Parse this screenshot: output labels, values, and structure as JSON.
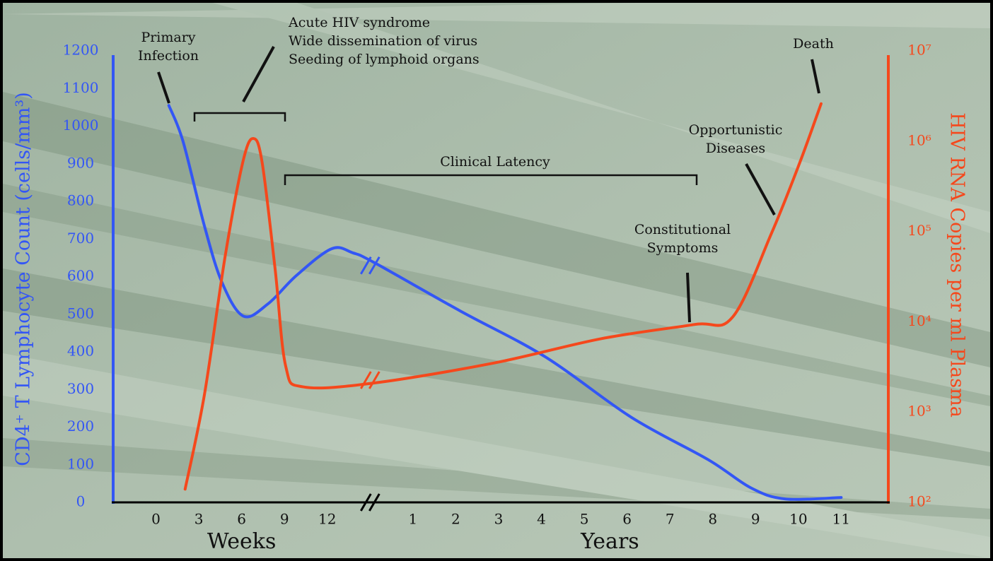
{
  "chart_data": {
    "type": "line",
    "y_title": "CD4⁺ T Lymphocyte Count (cells/mm³)",
    "y2_title": "HIV RNA Copies per ml Plasma",
    "x_groups": [
      {
        "label": "Weeks",
        "at": 2
      },
      {
        "label": "Years",
        "at": 10.6
      }
    ],
    "xlim": [
      -1,
      17.1
    ],
    "xticks": [
      {
        "value": 0,
        "label": "0"
      },
      {
        "value": 1,
        "label": "3"
      },
      {
        "value": 2,
        "label": "6"
      },
      {
        "value": 3,
        "label": "9"
      },
      {
        "value": 4,
        "label": "12"
      },
      {
        "value": 6,
        "label": "1"
      },
      {
        "value": 7,
        "label": "2"
      },
      {
        "value": 8,
        "label": "3"
      },
      {
        "value": 9,
        "label": "4"
      },
      {
        "value": 10,
        "label": "5"
      },
      {
        "value": 11,
        "label": "6"
      },
      {
        "value": 12,
        "label": "7"
      },
      {
        "value": 13,
        "label": "8"
      },
      {
        "value": 14,
        "label": "9"
      },
      {
        "value": 15,
        "label": "10"
      },
      {
        "value": 16,
        "label": "11"
      }
    ],
    "ylim": [
      0,
      1200
    ],
    "yticks": [
      0,
      100,
      200,
      300,
      400,
      500,
      600,
      700,
      800,
      900,
      1000,
      1100,
      1200
    ],
    "y2lim": [
      100,
      10000000
    ],
    "y2_log": true,
    "y2ticks": [
      {
        "value": 100,
        "label": "10²"
      },
      {
        "value": 1000,
        "label": "10³"
      },
      {
        "value": 10000,
        "label": "10⁴"
      },
      {
        "value": 100000,
        "label": "10⁵"
      },
      {
        "value": 1000000,
        "label": "10⁶"
      },
      {
        "value": 10000000,
        "label": "10⁷"
      }
    ],
    "series": [
      {
        "color": "#3356f5",
        "axis": "y",
        "x": [
          0.3,
          0.63,
          1.13,
          1.54,
          2.04,
          2.62,
          3.28,
          4.1,
          4.6,
          5.1,
          7.1,
          9.1,
          11.1,
          12.9,
          13.9,
          14.7,
          16.0
        ],
        "values": [
          1055,
          960,
          735,
          585,
          495,
          528,
          603,
          674,
          663,
          637,
          509,
          386,
          226,
          113,
          38,
          9,
          13
        ]
      },
      {
        "color": "#f5481c",
        "axis": "y2",
        "x": [
          0.68,
          1.13,
          1.62,
          2.04,
          2.28,
          2.48,
          2.78,
          3.03,
          3.44,
          5.1,
          7.9,
          10.4,
          12.55,
          13.46,
          14.37,
          15.03,
          15.53
        ],
        "values": [
          140,
          1550,
          55000,
          620000,
          1070000,
          575000,
          39000,
          3200,
          1900,
          2100,
          3500,
          6500,
          9300,
          11200,
          95000,
          575000,
          2600000
        ]
      }
    ],
    "annotations": [
      {
        "lines": [
          "Primary",
          "Infection"
        ]
      },
      {
        "lines": [
          "Acute HIV syndrome",
          "Wide dissemination of virus",
          "Seeding of lymphoid organs"
        ]
      },
      {
        "lines": [
          "Clinical Latency"
        ]
      },
      {
        "lines": [
          "Constitutional",
          "Symptoms"
        ]
      },
      {
        "lines": [
          "Opportunistic",
          "Diseases"
        ]
      },
      {
        "lines": [
          "Death"
        ]
      }
    ]
  }
}
